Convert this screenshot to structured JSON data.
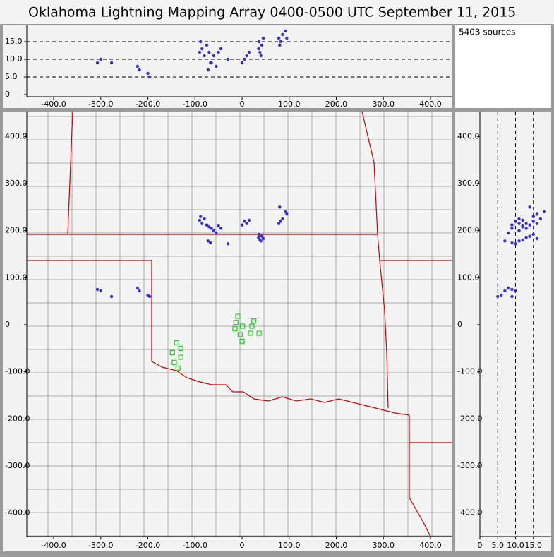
{
  "title": "Oklahoma Lightning Mapping Array   0400-0500 UTC  September 11, 2015",
  "source_count": "5403 sources",
  "chart_data": {
    "type": "scatter",
    "xlim": [
      -457,
      445
    ],
    "xticks": [
      {
        "value": -400,
        "label": "-400.0"
      },
      {
        "value": -300,
        "label": "-300.0"
      },
      {
        "value": -200,
        "label": "-200.0"
      },
      {
        "value": -100,
        "label": "-100.0"
      },
      0,
      {
        "value": 100,
        "label": "100.0"
      },
      {
        "value": 200,
        "label": "200.0"
      },
      {
        "value": 300,
        "label": "300.0"
      },
      {
        "value": 400,
        "label": "400.0"
      }
    ],
    "ylim": [
      -450,
      453
    ],
    "yticks": [
      {
        "value": -400,
        "label": "-400.0"
      },
      {
        "value": -300,
        "label": "-300.0"
      },
      {
        "value": -200,
        "label": "-200.0"
      },
      {
        "value": -100,
        "label": "-100.0"
      },
      0,
      {
        "value": 100,
        "label": "100.0"
      },
      {
        "value": 200,
        "label": "200.0"
      },
      {
        "value": 300,
        "label": "300.0"
      },
      {
        "value": 400,
        "label": "400.0"
      }
    ],
    "altlim": [
      0,
      20
    ],
    "altticks": [
      0,
      {
        "value": 5,
        "label": "5.0"
      },
      {
        "value": 10,
        "label": "10.0"
      },
      {
        "value": 15,
        "label": "15.0"
      }
    ],
    "alt_grid": true,
    "sources": {
      "color": "#3a2fd0",
      "x": [
        -90,
        -85,
        -80,
        -75,
        -70,
        -65,
        -88,
        -60,
        -50,
        -45,
        -55,
        -30,
        -67,
        -72,
        5,
        10,
        15,
        0,
        35,
        38,
        42,
        40,
        45,
        36,
        78,
        82,
        86,
        92,
        95,
        80,
        -307,
        -300,
        -222,
        -218,
        -200,
        -196,
        -277
      ],
      "y": [
        222,
        215,
        225,
        212,
        208,
        205,
        230,
        200,
        210,
        205,
        195,
        172,
        174,
        178,
        220,
        215,
        222,
        212,
        185,
        180,
        188,
        178,
        183,
        192,
        215,
        220,
        225,
        240,
        235,
        250,
        75,
        72,
        78,
        72,
        63,
        60,
        60
      ],
      "alt": [
        12,
        13,
        11,
        14,
        12,
        9,
        15,
        11,
        12,
        13,
        8,
        10,
        9,
        7,
        10,
        11,
        12,
        9,
        13,
        12,
        14,
        11,
        16,
        15,
        16,
        15,
        17,
        18,
        16,
        14,
        9,
        10,
        8,
        7,
        6,
        5,
        9
      ]
    },
    "stations": {
      "color": "#22cc22",
      "x": [
        -9,
        -13,
        1,
        -15,
        25,
        21,
        36,
        18,
        -4,
        0,
        -139,
        -130,
        -148,
        -130,
        -144,
        -136
      ],
      "y": [
        18,
        5,
        -3,
        -8,
        8,
        -3,
        -18,
        -18,
        -21,
        -35,
        -38,
        -50,
        -59,
        -69,
        -80,
        -92
      ]
    }
  }
}
